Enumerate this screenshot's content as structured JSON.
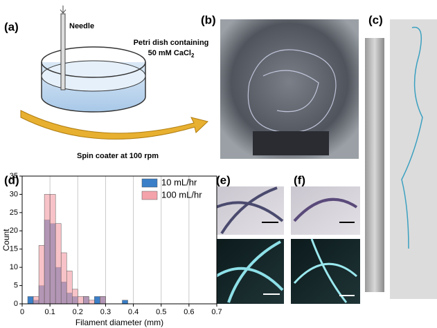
{
  "panels": {
    "a": {
      "label": "(a)",
      "needle": "Needle",
      "dish_line1": "Petri dish containing",
      "dish_line2": "50 mM CaCl",
      "dish_sub": "2",
      "spin": "Spin coater at 100 rpm"
    },
    "b": {
      "label": "(b)"
    },
    "c": {
      "label": "(c)"
    },
    "d": {
      "label": "(d)"
    },
    "e": {
      "label": "(e)"
    },
    "f": {
      "label": "(f)"
    }
  },
  "chart_data": {
    "type": "histogram",
    "x_label": "Filament diameter (mm)",
    "y_label": "Count",
    "bins": [
      0.02,
      0.04,
      0.06,
      0.08,
      0.1,
      0.12,
      0.14,
      0.16,
      0.18,
      0.2,
      0.22,
      0.24,
      0.26,
      0.28,
      0.3,
      0.32,
      0.34,
      0.36,
      0.38
    ],
    "series": [
      {
        "name": "10 mL/hr",
        "color": "#3a7fc8",
        "values": [
          2,
          1,
          5,
          23,
          22,
          10,
          6,
          3,
          2,
          0,
          2,
          0,
          2,
          2,
          0,
          0,
          0,
          1
        ]
      },
      {
        "name": "100 mL/hr",
        "color": "#f4a3ab",
        "values": [
          0,
          2,
          16,
          30,
          30,
          22,
          14,
          9,
          4,
          2,
          2,
          1,
          0,
          2,
          0,
          0,
          0,
          0
        ]
      }
    ],
    "xlim": [
      0,
      0.7
    ],
    "xticks": [
      0,
      0.1,
      0.2,
      0.3,
      0.4,
      0.5,
      0.6,
      0.7
    ],
    "ylim": [
      0,
      35
    ],
    "yticks": [
      0,
      5,
      10,
      15,
      20,
      25,
      30,
      35
    ],
    "grid": "x",
    "legend": "upper right"
  }
}
